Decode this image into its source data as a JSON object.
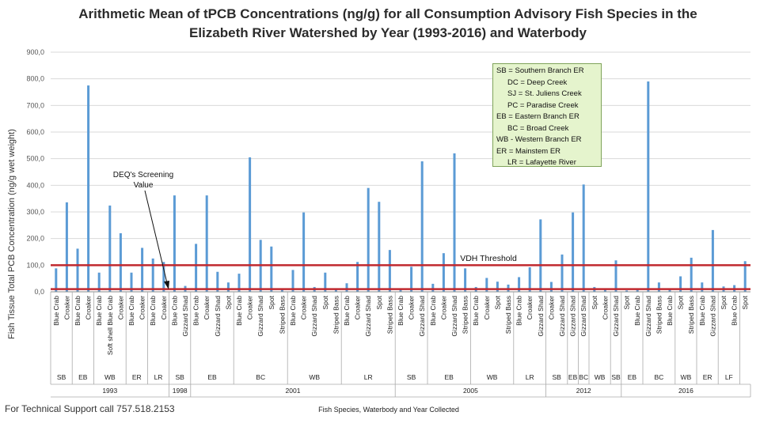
{
  "chart_data": {
    "type": "bar",
    "title": "Arithmetic Mean of tPCB Concentrations (ng/g) for all Consumption Advisory Fish Species in the Elizabeth River Watershed by Year (1993-2016) and Waterbody",
    "ylabel": "Fish Tissue Total PCB Concentration  (ng/g wet weight)",
    "xlabel": "Fish Species, Waterbody and Year Collected",
    "ylim": [
      0,
      900
    ],
    "yticks": [
      "0,0",
      "100,0",
      "200,0",
      "300,0",
      "400,0",
      "500,0",
      "600,0",
      "700,0",
      "800,0",
      "900,0"
    ],
    "categories": [
      "Blue Crab",
      "Croaker",
      "Blue Crab",
      "Croaker",
      "Blue Crab",
      "Soft shell Blue Crab",
      "Croaker",
      "Blue Crab",
      "Croaker",
      "Blue Crab",
      "Croaker",
      "Blue Crab",
      "Gizzard Shad",
      "Blue Crab",
      "Croaker",
      "Gizzard Shad",
      "Spot",
      "Blue Crab",
      "Croaker",
      "Gizzard Shad",
      "Spot",
      "Striped Bass",
      "Blue Crab",
      "Croaker",
      "Gizzard Shad",
      "Spot",
      "Striped Bass",
      "Blue Crab",
      "Croaker",
      "Gizzard Shad",
      "Spot",
      "Striped Bass",
      "Blue Crab",
      "Croaker",
      "Gizzard Shad",
      "Blue Crab",
      "Croaker",
      "Gizzard Shad",
      "Striped Bass",
      "Blue Crab",
      "Croaker",
      "Spot",
      "Striped Bass",
      "Blue Crab",
      "Croaker",
      "Gizzard Shad",
      "Croaker",
      "Gizzard Shad",
      "Gizzard Shad",
      "Gizzard Shad",
      "Spot",
      "Croaker",
      "Gizzard Shad",
      "Spot",
      "Blue Crab",
      "Gizzard Shad",
      "Striped Bass",
      "Blue Crab",
      "Spot",
      "Striped Bass",
      "Blue Crab",
      "Gizzard Shad",
      "Spot",
      "Blue Crab",
      "Spot"
    ],
    "values": [
      88,
      336,
      162,
      775,
      72,
      324,
      220,
      72,
      165,
      125,
      112,
      362,
      22,
      180,
      362,
      75,
      35,
      68,
      505,
      195,
      170,
      10,
      82,
      298,
      18,
      72,
      12,
      32,
      112,
      390,
      338,
      157,
      10,
      94,
      490,
      30,
      145,
      520,
      88,
      18,
      52,
      38,
      27,
      55,
      92,
      272,
      37,
      140,
      298,
      403,
      18,
      12,
      118,
      5,
      12,
      790,
      35,
      12,
      58,
      128,
      35,
      232,
      20,
      25,
      115
    ],
    "waterbody_groups": [
      {
        "label": "SB",
        "count": 2
      },
      {
        "label": "EB",
        "count": 2
      },
      {
        "label": "WB",
        "count": 3
      },
      {
        "label": "ER",
        "count": 2
      },
      {
        "label": "LR",
        "count": 2
      },
      {
        "label": "SB",
        "count": 2
      },
      {
        "label": "EB",
        "count": 4
      },
      {
        "label": "BC",
        "count": 5
      },
      {
        "label": "WB",
        "count": 5
      },
      {
        "label": "LR",
        "count": 5
      },
      {
        "label": "SB",
        "count": 3
      },
      {
        "label": "EB",
        "count": 4
      },
      {
        "label": "WB",
        "count": 4
      },
      {
        "label": "LR",
        "count": 3
      },
      {
        "label": "SB",
        "count": 2
      },
      {
        "label": "EB",
        "count": 1
      },
      {
        "label": "BC",
        "count": 1
      },
      {
        "label": "WB",
        "count": 2
      },
      {
        "label": "SB",
        "count": 1
      },
      {
        "label": "EB",
        "count": 2
      },
      {
        "label": "BC",
        "count": 3
      },
      {
        "label": "WB",
        "count": 2
      },
      {
        "label": "ER",
        "count": 2
      },
      {
        "label": "LF",
        "count": 2
      }
    ],
    "year_groups": [
      {
        "label": "1993",
        "count": 11
      },
      {
        "label": "1998",
        "count": 2
      },
      {
        "label": "2001",
        "count": 19
      },
      {
        "label": "2005",
        "count": 14
      },
      {
        "label": "2012",
        "count": 7
      },
      {
        "label": "2016",
        "count": 12
      }
    ],
    "reference_lines": [
      {
        "name": "VDH Threshold",
        "value": 100,
        "color": "#c0282e"
      },
      {
        "name": "DEQ's Screening Value",
        "value": 10,
        "color": "#c0282e"
      }
    ],
    "annotations": {
      "vdh": "VDH Threshold",
      "deq_line1": "DEQ's Screening",
      "deq_line2": "Value"
    },
    "bar_color": "#5b9bd5",
    "legend": [
      "SB = Southern Branch ER",
      "DC = Deep Creek",
      "SJ = St. Juliens Creek",
      "PC = Paradise Creek",
      "EB = Eastern Branch ER",
      "BC = Broad Creek",
      "WB - Western Branch ER",
      "ER = Mainstem ER",
      "LR = Lafayette River"
    ]
  },
  "footer": {
    "support": "For Technical Support call 757.518.2153"
  }
}
